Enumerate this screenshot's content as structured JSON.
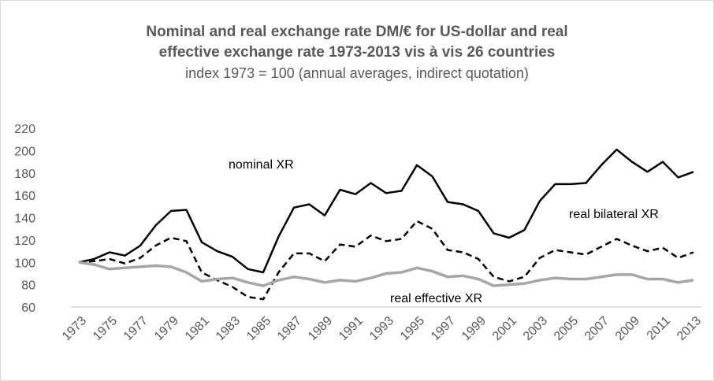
{
  "chart_data": {
    "type": "line",
    "title": [
      "Nominal and real exchange rate DM/€ for US-dollar and real",
      "effective exchange rate 1973-2013 vis à vis 26 countries"
    ],
    "subtitle": "index 1973 = 100 (annual averages, indirect quotation)",
    "categories": [
      "1973",
      null,
      "1975",
      null,
      "1977",
      null,
      "1979",
      null,
      "1981",
      null,
      "1983",
      null,
      "1985",
      null,
      "1987",
      null,
      "1989",
      null,
      "1991",
      null,
      "1993",
      null,
      "1995",
      null,
      "1997",
      null,
      "1999",
      null,
      "2001",
      null,
      "2003",
      null,
      "2005",
      null,
      "2007",
      null,
      "2009",
      null,
      "2011",
      null,
      "2013"
    ],
    "series": [
      {
        "name": "nominal XR",
        "color": "#000000",
        "dash": false,
        "values": [
          100,
          103,
          109,
          106,
          115,
          133,
          146,
          147,
          118,
          110,
          105,
          94,
          91,
          123,
          149,
          152,
          142,
          165,
          161,
          171,
          162,
          164,
          187,
          177,
          154,
          152,
          146,
          126,
          122,
          129,
          155,
          170,
          170,
          171,
          187,
          201,
          190,
          181,
          190,
          176,
          181
        ]
      },
      {
        "name": "real bilateral XR",
        "color": "#000000",
        "dash": true,
        "values": [
          100,
          101,
          103,
          99,
          104,
          115,
          122,
          119,
          91,
          84,
          78,
          69,
          67,
          91,
          108,
          108,
          101,
          116,
          114,
          124,
          119,
          121,
          137,
          130,
          111,
          109,
          103,
          87,
          83,
          87,
          104,
          111,
          109,
          107,
          114,
          121,
          115,
          110,
          113,
          104,
          109
        ]
      },
      {
        "name": "real effective XR",
        "color": "#a6a6a6",
        "dash": false,
        "values": [
          100,
          98,
          94,
          95,
          96,
          97,
          96,
          91,
          83,
          85,
          86,
          82,
          79,
          84,
          87,
          85,
          82,
          84,
          83,
          86,
          90,
          91,
          95,
          92,
          87,
          88,
          85,
          79,
          80,
          81,
          84,
          86,
          85,
          85,
          87,
          89,
          89,
          85,
          85,
          82,
          84
        ]
      }
    ],
    "ylim": [
      60,
      220
    ],
    "yticks": [
      60,
      80,
      100,
      120,
      140,
      160,
      180,
      200,
      220
    ],
    "grid": false
  }
}
